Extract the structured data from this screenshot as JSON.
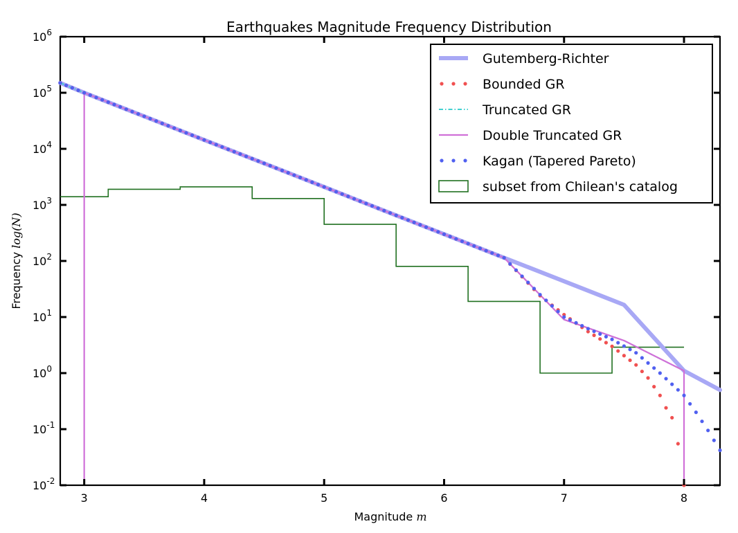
{
  "chart_data": {
    "type": "line",
    "title": "Earthquakes Magnitude Frequency Distribution",
    "xlabel_text": "Magnitude",
    "xlabel_symbol": "m",
    "ylabel_text": "Frequency",
    "ylabel_symbol": "log(N)",
    "xlim": [
      2.8,
      8.3
    ],
    "ylim": [
      0.01,
      1000000
    ],
    "yscale": "log",
    "grid": false,
    "legend_position": "top-right",
    "x_ticks": [
      {
        "value": 3,
        "label": "3"
      },
      {
        "value": 4,
        "label": "4"
      },
      {
        "value": 5,
        "label": "5"
      },
      {
        "value": 6,
        "label": "6"
      },
      {
        "value": 7,
        "label": "7"
      },
      {
        "value": 8,
        "label": "8"
      }
    ],
    "y_ticks": [
      {
        "value": 0.01,
        "base": "10",
        "exp": "-2"
      },
      {
        "value": 0.1,
        "base": "10",
        "exp": "-1"
      },
      {
        "value": 1,
        "base": "10",
        "exp": "0"
      },
      {
        "value": 10,
        "base": "10",
        "exp": "1"
      },
      {
        "value": 100,
        "base": "10",
        "exp": "2"
      },
      {
        "value": 1000,
        "base": "10",
        "exp": "3"
      },
      {
        "value": 10000,
        "base": "10",
        "exp": "4"
      },
      {
        "value": 100000,
        "base": "10",
        "exp": "5"
      },
      {
        "value": 1000000,
        "base": "10",
        "exp": "6"
      }
    ],
    "series": [
      {
        "name": "Gutemberg-Richter",
        "style": "line",
        "color": "#a8a8f5",
        "x": [
          2.8,
          3.0,
          3.5,
          4.0,
          4.5,
          5.0,
          5.5,
          6.0,
          6.5,
          7.0,
          7.5,
          8.0,
          8.3
        ],
        "y": [
          150000,
          100000,
          38000,
          14400,
          5500,
          2090,
          790,
          300,
          114,
          43.5,
          16.5,
          1.1,
          0.5
        ]
      },
      {
        "name": "Bounded GR",
        "style": "dots",
        "color": "#f05050",
        "x": [
          2.8,
          3.0,
          3.5,
          4.0,
          4.5,
          5.0,
          5.5,
          6.0,
          6.5,
          6.8,
          7.0,
          7.2,
          7.4,
          7.6,
          7.7,
          7.8,
          7.85,
          7.9,
          7.95,
          8.0
        ],
        "y": [
          150000,
          100000,
          38000,
          14400,
          5500,
          2090,
          790,
          300,
          114,
          24,
          11,
          5.5,
          3.0,
          1.4,
          0.82,
          0.4,
          0.24,
          0.16,
          0.055,
          0.01
        ]
      },
      {
        "name": "Truncated GR",
        "style": "dashdot",
        "color": "#40d0d0",
        "x": [
          2.8,
          3.0,
          3.5,
          4.0,
          4.5,
          5.0,
          5.5,
          6.0,
          6.5,
          7.0,
          7.5,
          8.0
        ],
        "y": [
          150000,
          100000,
          38000,
          14400,
          5500,
          2090,
          790,
          300,
          114,
          9.0,
          3.8,
          1.1
        ]
      },
      {
        "name": "Double Truncated GR",
        "style": "line",
        "color": "#d070d8",
        "x": [
          3.0,
          3.0,
          3.5,
          4.0,
          4.5,
          5.0,
          5.5,
          6.0,
          6.5,
          7.0,
          7.5,
          8.0,
          8.0
        ],
        "y": [
          0.01,
          100000,
          38000,
          14400,
          5500,
          2090,
          790,
          300,
          114,
          9.0,
          3.8,
          1.1,
          0.01
        ]
      },
      {
        "name": "Kagan (Tapered Pareto)",
        "style": "dots",
        "color": "#5060f0",
        "x": [
          2.8,
          3.0,
          3.5,
          4.0,
          4.5,
          5.0,
          5.5,
          6.0,
          6.5,
          6.8,
          7.0,
          7.2,
          7.4,
          7.6,
          7.8,
          8.0,
          8.1,
          8.2,
          8.3
        ],
        "y": [
          150000,
          100000,
          38000,
          14400,
          5500,
          2090,
          790,
          300,
          114,
          25,
          10,
          6.2,
          4.0,
          2.3,
          1.0,
          0.4,
          0.2,
          0.095,
          0.042
        ]
      },
      {
        "name": "subset from Chilean's catalog",
        "style": "step",
        "color": "#207020",
        "edges": [
          2.8,
          3.2,
          3.8,
          4.4,
          5.0,
          5.6,
          6.2,
          6.8,
          7.4,
          8.0
        ],
        "counts": [
          1400,
          1900,
          2100,
          1300,
          450,
          80,
          19,
          1.0,
          2.9
        ]
      }
    ]
  }
}
